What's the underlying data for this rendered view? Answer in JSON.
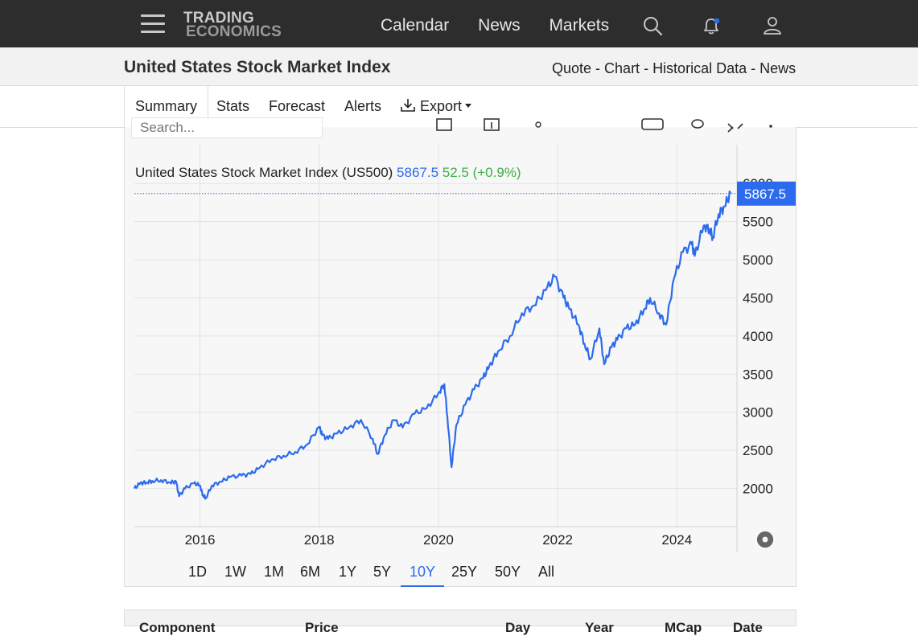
{
  "nav": {
    "logo_line1": "TRADING",
    "logo_line2": "ECONOMICS",
    "links": [
      "Calendar",
      "News",
      "Markets"
    ]
  },
  "header": {
    "title": "United States Stock Market Index",
    "crumbs": [
      "Quote",
      "Chart",
      "Historical Data",
      "News"
    ],
    "crumb_sep": "-"
  },
  "tabs": {
    "summary": "Summary",
    "stats": "Stats",
    "forecast": "Forecast",
    "alerts": "Alerts",
    "export": "Export"
  },
  "toolbar": {
    "search_placeholder": "Search..."
  },
  "legend": {
    "name": "United States Stock Market Index (US500)",
    "price": "5867.5",
    "change": "52.5 (+0.9%)"
  },
  "price_tag": "5867.5",
  "ranges": [
    "1D",
    "1W",
    "1M",
    "6M",
    "1Y",
    "5Y",
    "10Y",
    "25Y",
    "50Y",
    "All"
  ],
  "active_range": "10Y",
  "table_headers": [
    "Component",
    "Price",
    "Day",
    "Year",
    "MCap",
    "Date"
  ],
  "colors": {
    "line": "#2c6bed",
    "change": "#3cb043",
    "accent": "#2c6bed"
  },
  "chart_data": {
    "type": "line",
    "title": "United States Stock Market Index (US500)",
    "xlabel": "",
    "ylabel": "",
    "x_ticks": [
      "2016",
      "2018",
      "2020",
      "2022",
      "2024"
    ],
    "y_ticks": [
      2000,
      2500,
      3000,
      3500,
      4000,
      4500,
      5000,
      5500,
      6000
    ],
    "ylim": [
      1500,
      6150
    ],
    "xlim": [
      2014.9,
      2024.9
    ],
    "grid": true,
    "last_value": 5867.5,
    "series": [
      {
        "name": "US500",
        "x": [
          2014.9,
          2015.0,
          2015.1,
          2015.2,
          2015.35,
          2015.5,
          2015.6,
          2015.65,
          2015.75,
          2015.9,
          2016.0,
          2016.05,
          2016.1,
          2016.2,
          2016.35,
          2016.5,
          2016.7,
          2016.85,
          2017.0,
          2017.2,
          2017.4,
          2017.6,
          2017.8,
          2018.0,
          2018.05,
          2018.15,
          2018.3,
          2018.5,
          2018.7,
          2018.9,
          2018.98,
          2019.1,
          2019.25,
          2019.4,
          2019.6,
          2019.8,
          2020.0,
          2020.1,
          2020.15,
          2020.22,
          2020.3,
          2020.45,
          2020.6,
          2020.75,
          2020.85,
          2021.0,
          2021.2,
          2021.4,
          2021.6,
          2021.8,
          2021.95,
          2022.1,
          2022.2,
          2022.35,
          2022.45,
          2022.55,
          2022.7,
          2022.78,
          2022.9,
          2023.0,
          2023.15,
          2023.3,
          2023.45,
          2023.55,
          2023.7,
          2023.82,
          2023.95,
          2024.1,
          2024.25,
          2024.3,
          2024.45,
          2024.55,
          2024.6,
          2024.7,
          2024.8,
          2024.9
        ],
        "values": [
          2000,
          2070,
          2080,
          2100,
          2110,
          2080,
          2090,
          1900,
          2000,
          2070,
          2040,
          1910,
          1880,
          2040,
          2090,
          2150,
          2170,
          2190,
          2270,
          2380,
          2430,
          2480,
          2580,
          2810,
          2700,
          2650,
          2720,
          2800,
          2900,
          2650,
          2450,
          2700,
          2900,
          2800,
          2980,
          3050,
          3250,
          3370,
          2950,
          2280,
          2830,
          3100,
          3300,
          3450,
          3600,
          3800,
          4000,
          4300,
          4400,
          4600,
          4780,
          4500,
          4350,
          4150,
          3900,
          3700,
          4100,
          3630,
          3850,
          3950,
          4100,
          4150,
          4350,
          4500,
          4300,
          4150,
          4750,
          5100,
          5200,
          5050,
          5450,
          5400,
          5300,
          5600,
          5700,
          5867.5
        ]
      }
    ]
  }
}
